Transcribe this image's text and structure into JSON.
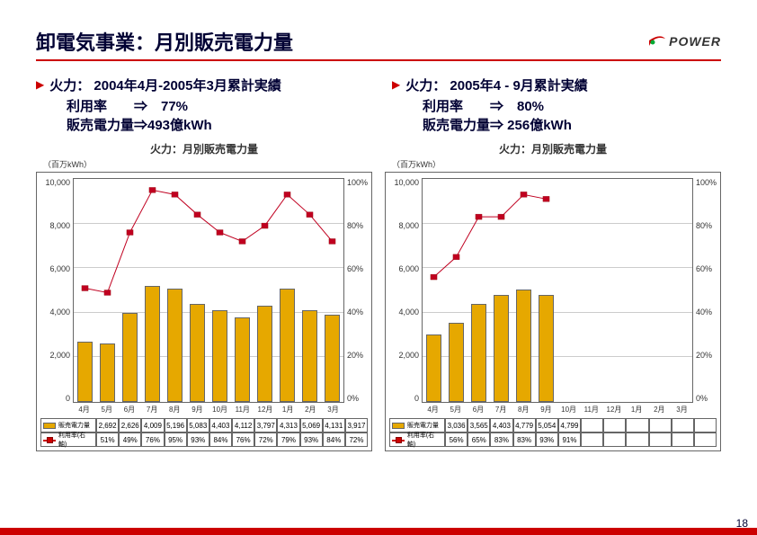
{
  "title": "卸電気事業：月別販売電力量",
  "logo_text": "POWER",
  "page_number": "18",
  "summaries": [
    {
      "main": "火力： 2004年4月-2005年3月累計実績",
      "util_label": "利用率　　⇒　77%",
      "sales_label": "販売電力量⇒493億kWh"
    },
    {
      "main": "火力： 2005年4 - 9月累計実績",
      "util_label": "利用率　　⇒　80%",
      "sales_label": "販売電力量⇒ 256億kWh"
    }
  ],
  "charts": [
    {
      "title": "火力：月別販売電力量",
      "unit": "（百万kWh）",
      "type": "bar+line",
      "y_left": {
        "min": 0,
        "max": 10000,
        "ticks": [
          0,
          2000,
          4000,
          6000,
          8000,
          10000
        ]
      },
      "y_right": {
        "min": 0,
        "max": 1.0,
        "ticks": [
          "0%",
          "20%",
          "40%",
          "60%",
          "80%",
          "100%"
        ]
      },
      "categories": [
        "4月",
        "5月",
        "6月",
        "7月",
        "8月",
        "9月",
        "10月",
        "11月",
        "12月",
        "1月",
        "2月",
        "3月"
      ],
      "bar_values": [
        2692,
        2626,
        4009,
        5196,
        5083,
        4403,
        4112,
        3797,
        4313,
        5069,
        4131,
        3917
      ],
      "line_values": [
        0.51,
        0.49,
        0.76,
        0.95,
        0.93,
        0.84,
        0.76,
        0.72,
        0.79,
        0.93,
        0.84,
        0.72
      ],
      "line_labels": [
        "51%",
        "49%",
        "76%",
        "95%",
        "93%",
        "84%",
        "76%",
        "72%",
        "79%",
        "93%",
        "84%",
        "72%"
      ],
      "bar_labels": [
        "2,692",
        "2,626",
        "4,009",
        "5,196",
        "5,083",
        "4,403",
        "4,112",
        "3,797",
        "4,313",
        "5,069",
        "4,131",
        "3,917"
      ],
      "bar_color": "#e6a800",
      "line_color": "#c00020",
      "legend_bar": "販売電力量",
      "legend_line": "利用率(右軸)"
    },
    {
      "title": "火力：月別販売電力量",
      "unit": "（百万kWh）",
      "type": "bar+line",
      "y_left": {
        "min": 0,
        "max": 10000,
        "ticks": [
          0,
          2000,
          4000,
          6000,
          8000,
          10000
        ]
      },
      "y_right": {
        "min": 0,
        "max": 1.0,
        "ticks": [
          "0%",
          "20%",
          "40%",
          "60%",
          "80%",
          "100%"
        ]
      },
      "categories": [
        "4月",
        "5月",
        "6月",
        "7月",
        "8月",
        "9月",
        "10月",
        "11月",
        "12月",
        "1月",
        "2月",
        "3月"
      ],
      "bar_values": [
        3036,
        3565,
        4403,
        4779,
        5054,
        4799,
        null,
        null,
        null,
        null,
        null,
        null
      ],
      "line_values": [
        0.56,
        0.65,
        0.83,
        0.83,
        0.93,
        0.91,
        null,
        null,
        null,
        null,
        null,
        null
      ],
      "line_labels": [
        "56%",
        "65%",
        "83%",
        "83%",
        "93%",
        "91%",
        "",
        "",
        "",
        "",
        "",
        ""
      ],
      "bar_labels": [
        "3,036",
        "3,565",
        "4,403",
        "4,779",
        "5,054",
        "4,799",
        "",
        "",
        "",
        "",
        "",
        ""
      ],
      "bar_color": "#e6a800",
      "line_color": "#c00020",
      "legend_bar": "販売電力量",
      "legend_line": "利用率(右軸)"
    }
  ]
}
